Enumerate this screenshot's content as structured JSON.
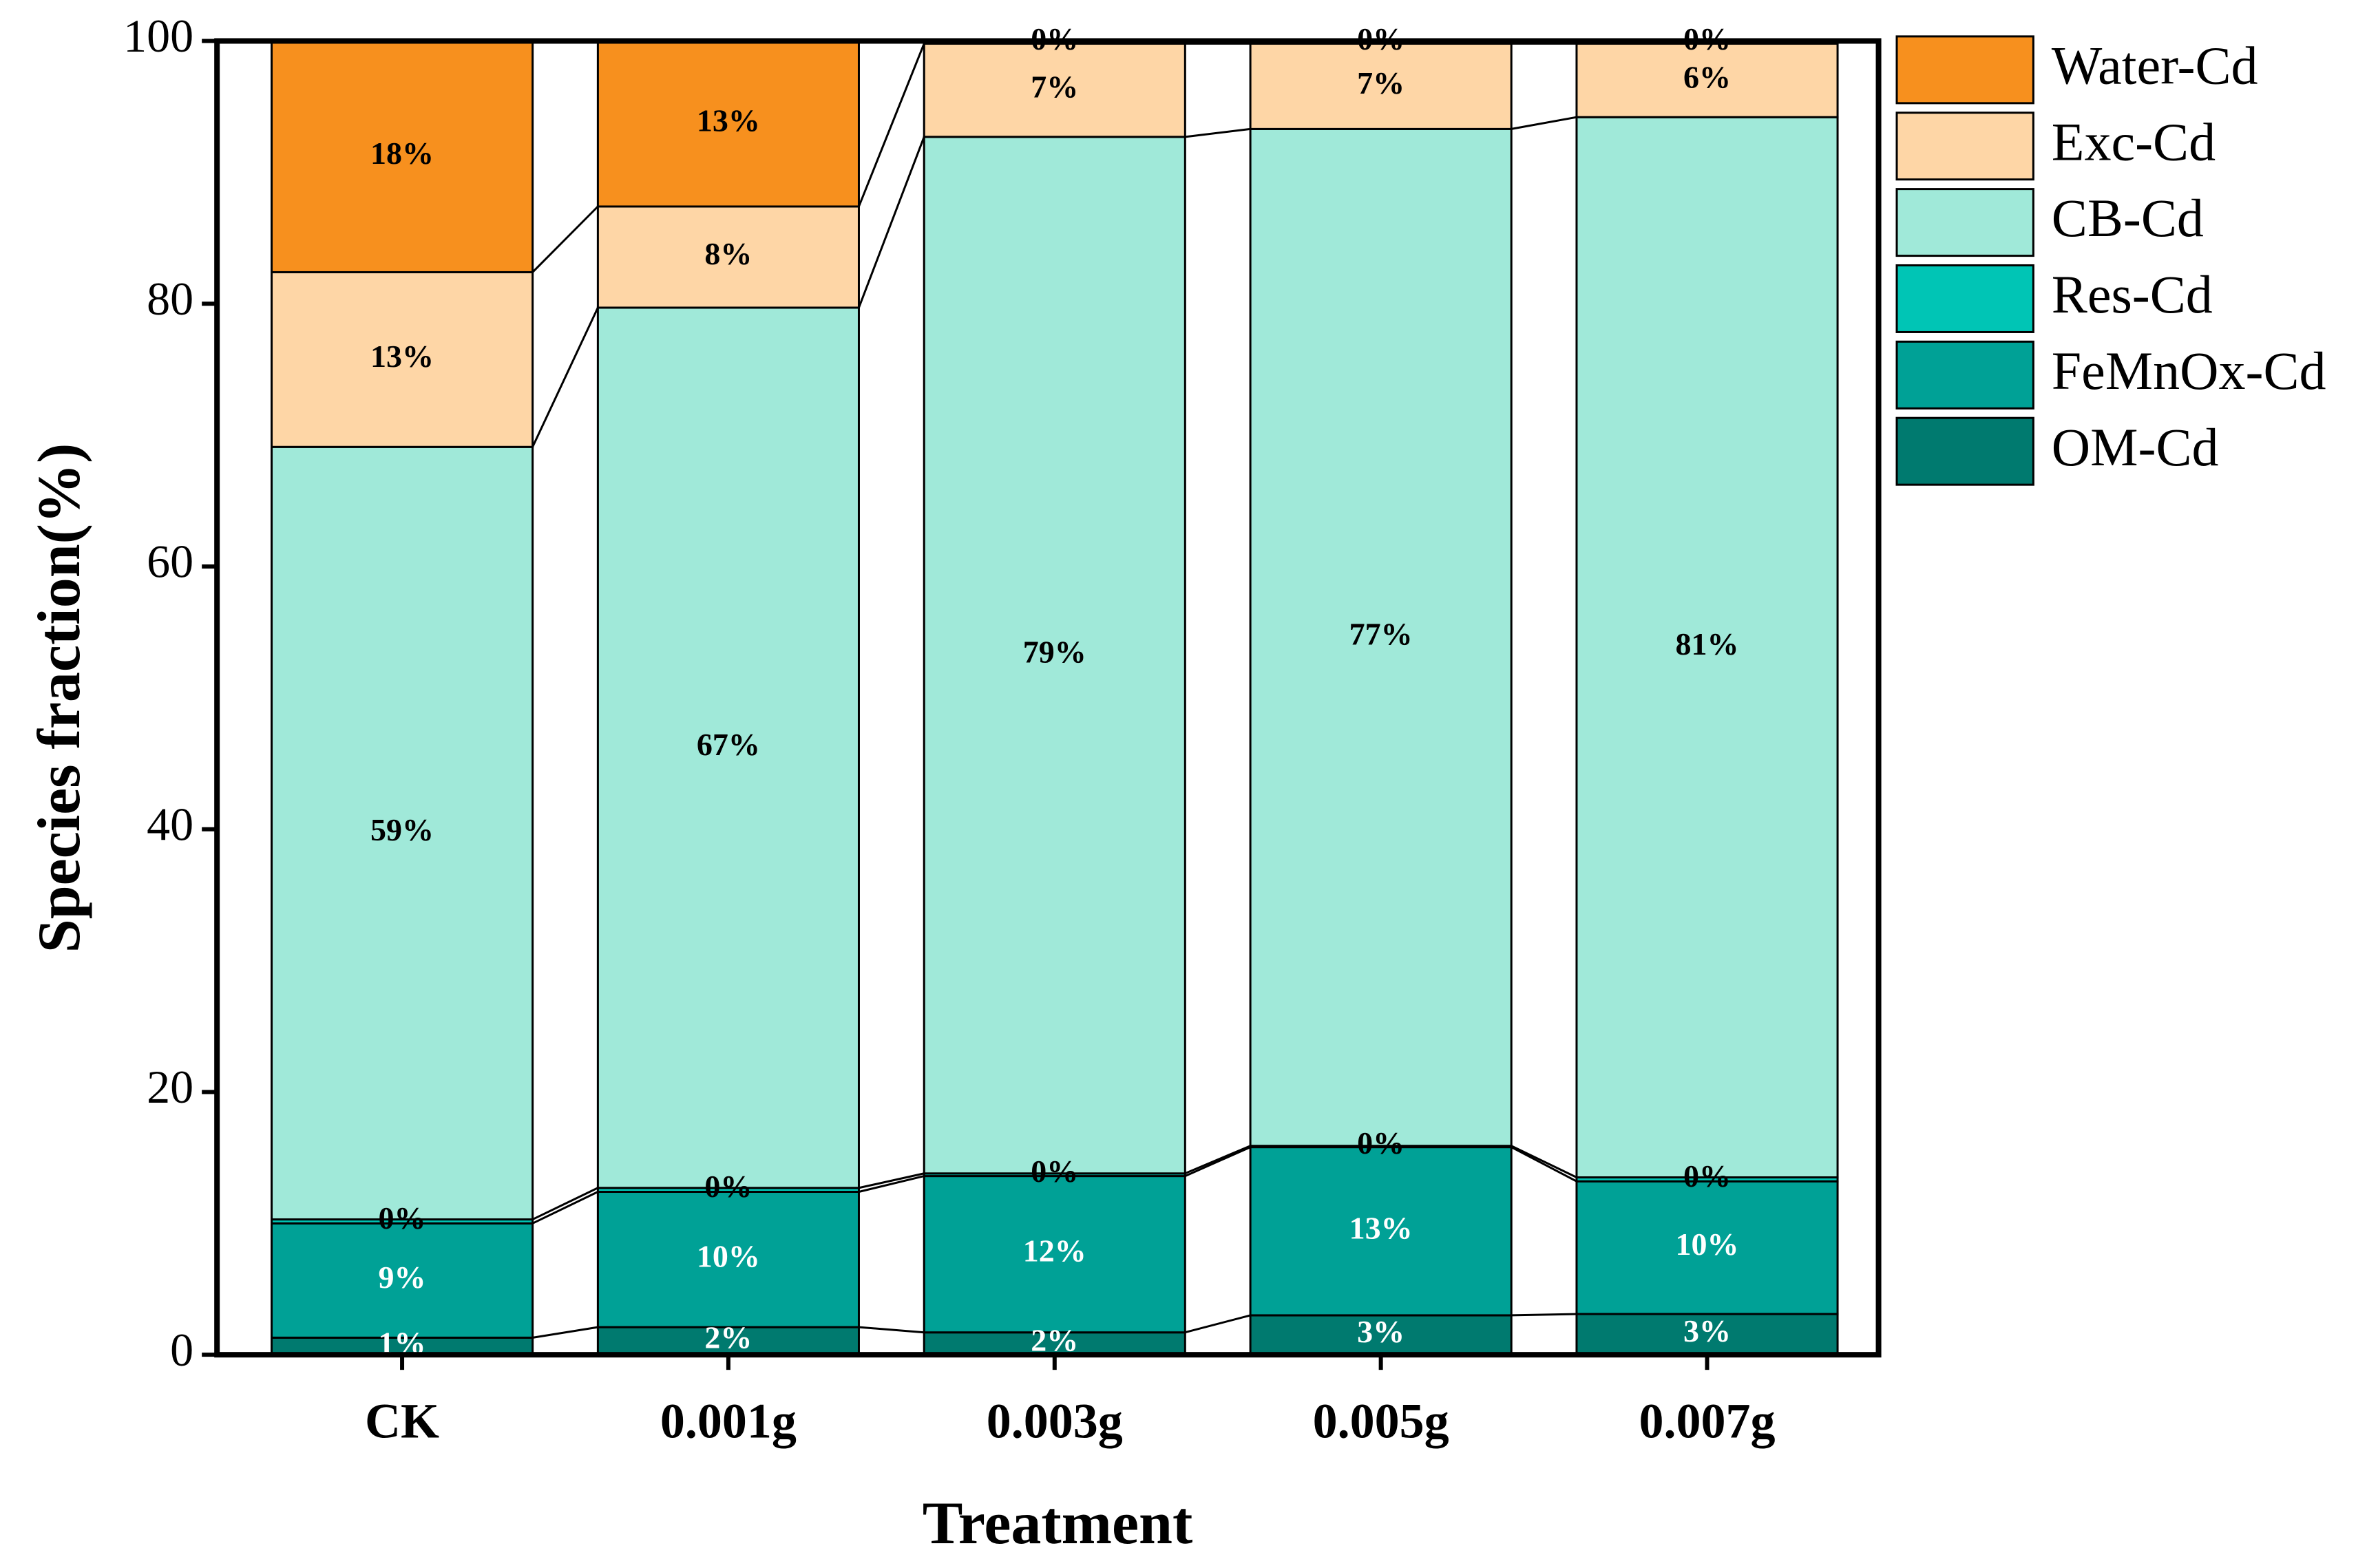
{
  "chart_data": {
    "type": "stacked_bar",
    "x_label": "Treatment",
    "y_label": "Species fraction(%)",
    "categories": [
      "CK",
      "0.001g",
      "0.003g",
      "0.005g",
      "0.007g"
    ],
    "ylim": [
      0,
      100
    ],
    "yticks": [
      0,
      20,
      40,
      60,
      80,
      100
    ],
    "series": [
      {
        "name": "Water-Cd",
        "color": "#f7901e",
        "label_color": "#000000",
        "values": [
          17.6,
          12.6,
          0.2,
          0.2,
          0.2
        ],
        "value_labels": [
          "18%",
          "13%",
          "0%",
          "0%",
          "0%"
        ]
      },
      {
        "name": "Exc-Cd",
        "color": "#fed6a6",
        "label_color": "#000000",
        "values": [
          13.3,
          7.7,
          7.1,
          6.5,
          5.6
        ],
        "value_labels": [
          "13%",
          "8%",
          "7%",
          "7%",
          "6%"
        ]
      },
      {
        "name": "CB-Cd",
        "color": "#a0e9d9",
        "label_color": "#000000",
        "values": [
          58.8,
          67.0,
          78.9,
          77.4,
          80.7
        ],
        "value_labels": [
          "59%",
          "67%",
          "79%",
          "77%",
          "81%"
        ]
      },
      {
        "name": "Res-Cd",
        "color": "#00c5b5",
        "label_color": "#000000",
        "values": [
          0.3,
          0.3,
          0.2,
          0.1,
          0.3
        ],
        "value_labels": [
          "0%",
          "0%",
          "0%",
          "0%",
          "0%"
        ]
      },
      {
        "name": "FeMnOx-Cd",
        "color": "#00a196",
        "label_color": "#ffffff",
        "values": [
          8.7,
          10.3,
          11.9,
          12.8,
          10.1
        ],
        "value_labels": [
          "9%",
          "10%",
          "12%",
          "13%",
          "10%"
        ]
      },
      {
        "name": "OM-Cd",
        "color": "#007a6f",
        "label_color": "#ffffff",
        "values": [
          1.3,
          2.1,
          1.7,
          3.0,
          3.1
        ],
        "value_labels": [
          "1%",
          "2%",
          "2%",
          "3%",
          "3%"
        ]
      }
    ]
  }
}
